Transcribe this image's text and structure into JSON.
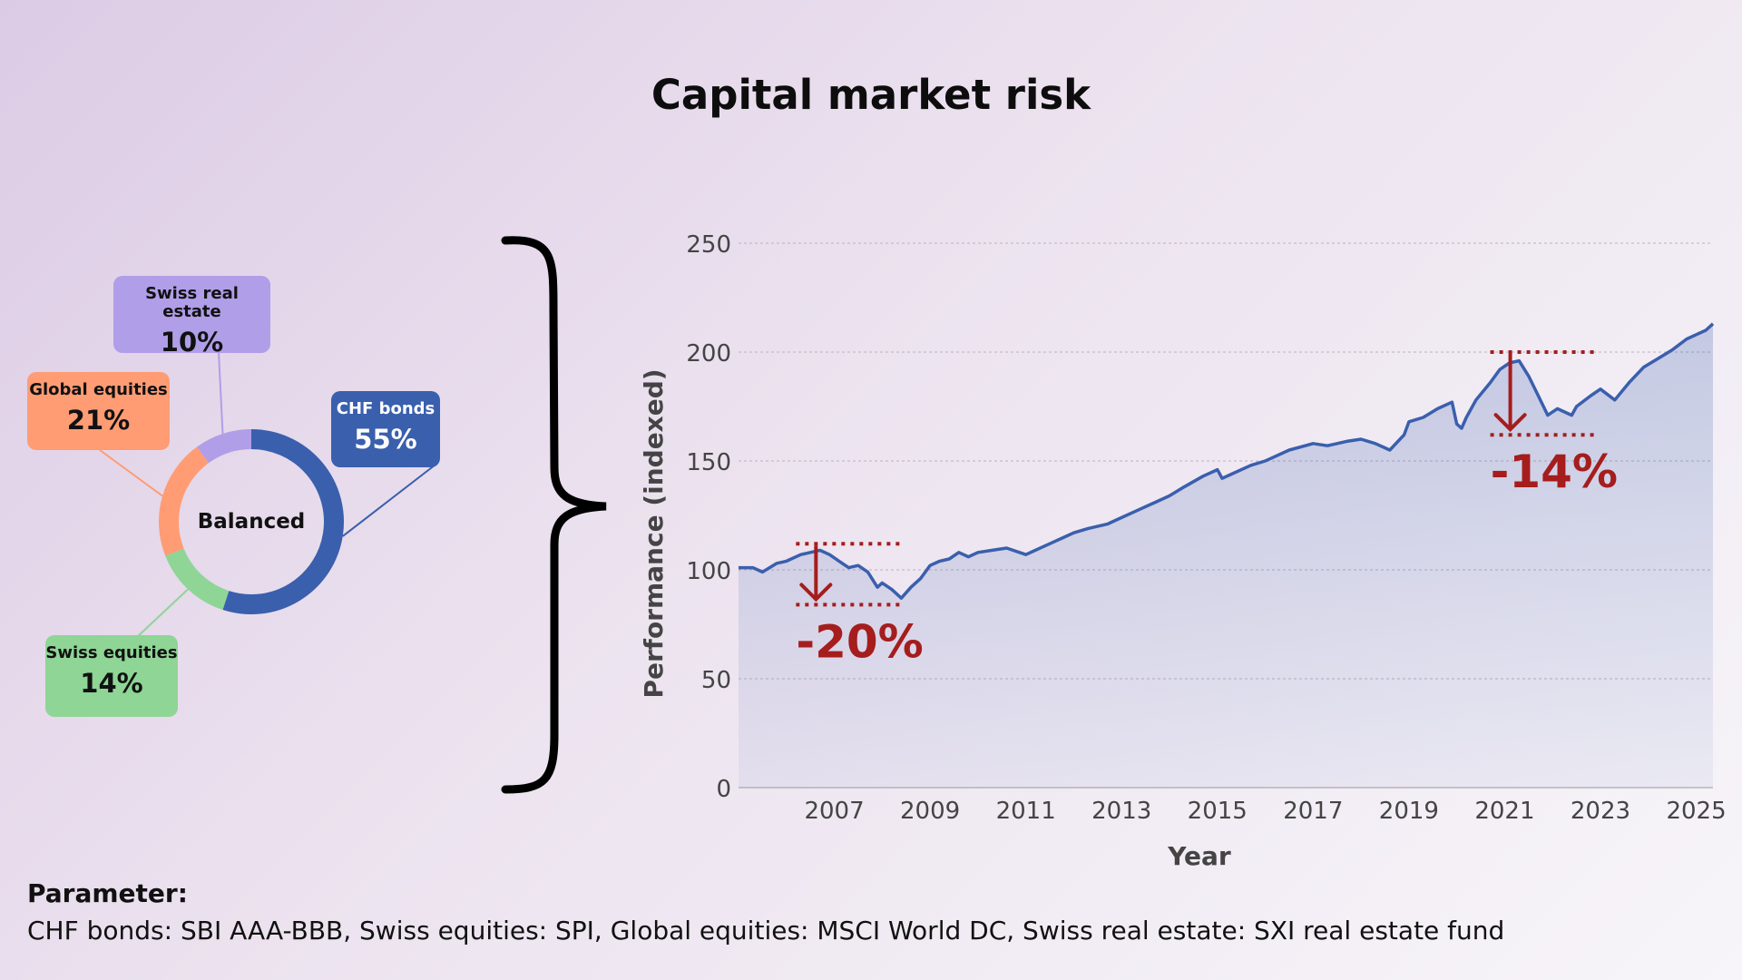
{
  "title": "Capital market risk",
  "donut": {
    "center_label": "Balanced",
    "segments": [
      {
        "name": "CHF bonds",
        "value": 55,
        "label": "55%",
        "color": "#3a5fad",
        "text_color": "#ffffff"
      },
      {
        "name": "Swiss equities",
        "value": 14,
        "label": "14%",
        "color": "#8ed596",
        "text_color": "#111111"
      },
      {
        "name": "Global equities",
        "value": 21,
        "label": "21%",
        "color": "#ff9c74",
        "text_color": "#111111"
      },
      {
        "name": "Swiss real estate",
        "value": 10,
        "label": "10%",
        "color": "#b09ee8",
        "text_color": "#111111"
      }
    ]
  },
  "chart_data": {
    "type": "area",
    "title": "",
    "xlabel": "Year",
    "ylabel": "Performance (indexed)",
    "xlim": [
      2005.0,
      2025.35
    ],
    "ylim": [
      0,
      250
    ],
    "yticks": [
      0,
      50,
      100,
      150,
      200,
      250
    ],
    "xticks": [
      2007,
      2009,
      2011,
      2013,
      2015,
      2017,
      2019,
      2021,
      2023,
      2025
    ],
    "grid": "horizontal dotted",
    "line_color": "#3a5fad",
    "area_color": "#3a5fad",
    "series": [
      {
        "x": [
          2005.0,
          2005.3,
          2005.5,
          2005.8,
          2006.0,
          2006.3,
          2006.5,
          2006.7,
          2006.9,
          2007.1,
          2007.3,
          2007.5,
          2007.7,
          2007.9,
          2008.0,
          2008.2,
          2008.4,
          2008.6,
          2008.8,
          2009.0,
          2009.2,
          2009.4,
          2009.6,
          2009.8,
          2010.0,
          2010.3,
          2010.6,
          2011.0,
          2011.2,
          2011.5,
          2011.8,
          2012.0,
          2012.3,
          2012.7,
          2013.0,
          2013.3,
          2013.7,
          2014.0,
          2014.3,
          2014.7,
          2015.0,
          2015.1,
          2015.3,
          2015.7,
          2016.0,
          2016.2,
          2016.5,
          2017.0,
          2017.3,
          2017.7,
          2018.0,
          2018.3,
          2018.6,
          2018.9,
          2019.0,
          2019.3,
          2019.6,
          2019.9,
          2020.0,
          2020.1,
          2020.2,
          2020.4,
          2020.7,
          2020.9,
          2021.1,
          2021.3,
          2021.5,
          2021.7,
          2021.9,
          2022.1,
          2022.4,
          2022.5,
          2022.8,
          2023.0,
          2023.3,
          2023.6,
          2023.9,
          2024.2,
          2024.5,
          2024.8,
          2025.0,
          2025.2,
          2025.35
        ],
        "y": [
          101,
          101,
          99,
          103,
          104,
          107,
          108,
          109,
          107,
          104,
          101,
          102,
          99,
          92,
          94,
          91,
          87,
          92,
          96,
          102,
          104,
          105,
          108,
          106,
          108,
          109,
          110,
          107,
          109,
          112,
          115,
          117,
          119,
          121,
          124,
          127,
          131,
          134,
          138,
          143,
          146,
          142,
          144,
          148,
          150,
          152,
          155,
          158,
          157,
          159,
          160,
          158,
          155,
          162,
          168,
          170,
          174,
          177,
          167,
          165,
          170,
          178,
          186,
          192,
          195,
          196,
          189,
          180,
          171,
          174,
          171,
          175,
          180,
          183,
          178,
          186,
          193,
          197,
          201,
          206,
          208,
          210,
          213
        ]
      }
    ],
    "annotations": [
      {
        "text": "-20%",
        "peak": 112,
        "trough": 84,
        "x_start": 2006.2,
        "x_end": 2008.4
      },
      {
        "text": "-14%",
        "peak": 200,
        "trough": 162,
        "x_start": 2020.7,
        "x_end": 2022.9
      }
    ]
  },
  "footer": {
    "heading": "Parameter:",
    "text": "CHF bonds: SBI AAA-BBB, Swiss equities: SPI, Global equities: MSCI World DC, Swiss real estate: SXI real estate fund"
  }
}
